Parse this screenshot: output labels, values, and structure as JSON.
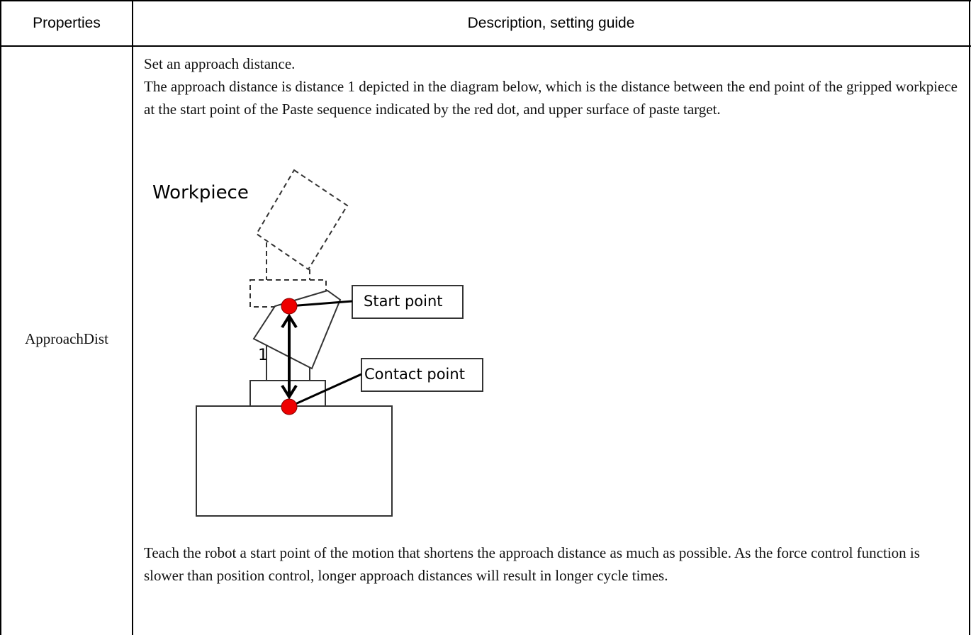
{
  "table": {
    "header": [
      "Properties",
      "Description, setting guide"
    ],
    "rows": [
      [
        "ApproachDist",
        {
          "intro": "Set an approach distance.",
          "explanation": "The approach distance is distance 1 depicted in the diagram below, which is the distance between the end point of the gripped workpiece at the start point of the Paste sequence indicated by the red dot, and upper surface of paste target.",
          "diagram": {
            "workpiece_label": "Workpiece",
            "distance_label": "1",
            "start_label": "Start point",
            "contact_label": "Contact point"
          },
          "advice": "Teach the robot a start point of the motion that shortens the approach distance as much as possible. As the force control function is slower than position control, longer approach distances will result in longer cycle times."
        }
      ]
    ]
  }
}
